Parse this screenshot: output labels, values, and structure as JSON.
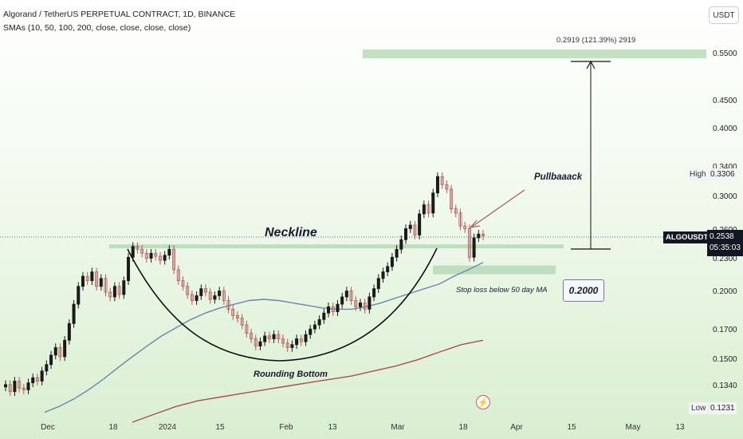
{
  "header": {
    "title": "Algorand / TetherUS PERPETUAL CONTRACT, 1D, BINANCE",
    "indicator": "SMAs (10, 50, 100, 200, close, close, close, close)"
  },
  "currency_button": "USDT",
  "symbol": "ALGOUSDT.P",
  "last_price": "0.2538",
  "countdown": "05:35:03",
  "high": {
    "label": "High",
    "value": "0.3306"
  },
  "low": {
    "label": "Low",
    "value": "0.1231"
  },
  "annotations": {
    "neckline": "Neckline",
    "rounding_bottom": "Rounding Bottom",
    "pullback": "Pullbaaack",
    "stop_loss": "Stop loss below 50 day MA",
    "measure": "0.2919 (121.39%) 2919",
    "target_box": "0.2000"
  },
  "colors": {
    "up_candle": "#1a1a1a",
    "down_candle": "#b25a5a",
    "sma50": "#6b87ac",
    "sma200": "#a85050",
    "zone": "#b9dbb9",
    "background_bottom": "#d9eed0"
  },
  "icons": {
    "alert": "lightning-icon"
  },
  "chart_data": {
    "type": "candlestick",
    "y_scale": "log",
    "y_tick_labels": [
      "0.5500",
      "0.4500",
      "0.4000",
      "0.3400",
      "0.3000",
      "0.2600",
      "0.2300",
      "0.2000",
      "0.1700",
      "0.1500",
      "0.1340"
    ],
    "x_tick_labels": [
      "Dec",
      "18",
      "2024",
      "15",
      "Feb",
      "13",
      "Mar",
      "18",
      "Apr",
      "15",
      "May",
      "13"
    ],
    "candles_close": [
      0.135,
      0.131,
      0.137,
      0.133,
      0.132,
      0.136,
      0.139,
      0.137,
      0.143,
      0.147,
      0.153,
      0.158,
      0.152,
      0.163,
      0.175,
      0.19,
      0.205,
      0.214,
      0.21,
      0.218,
      0.205,
      0.212,
      0.2,
      0.196,
      0.205,
      0.198,
      0.21,
      0.232,
      0.243,
      0.24,
      0.236,
      0.231,
      0.236,
      0.233,
      0.229,
      0.234,
      0.24,
      0.22,
      0.21,
      0.205,
      0.198,
      0.193,
      0.197,
      0.203,
      0.2,
      0.194,
      0.197,
      0.201,
      0.193,
      0.186,
      0.181,
      0.179,
      0.174,
      0.168,
      0.164,
      0.159,
      0.162,
      0.166,
      0.164,
      0.167,
      0.164,
      0.161,
      0.158,
      0.16,
      0.164,
      0.162,
      0.167,
      0.171,
      0.174,
      0.178,
      0.183,
      0.188,
      0.184,
      0.19,
      0.196,
      0.201,
      0.193,
      0.188,
      0.191,
      0.186,
      0.196,
      0.203,
      0.212,
      0.218,
      0.223,
      0.232,
      0.24,
      0.25,
      0.262,
      0.266,
      0.255,
      0.279,
      0.29,
      0.28,
      0.305,
      0.327,
      0.316,
      0.31,
      0.285,
      0.28,
      0.265,
      0.262,
      0.232,
      0.252,
      0.256,
      0.254
    ],
    "sma50": [
      0.12,
      0.123,
      0.127,
      0.132,
      0.138,
      0.145,
      0.152,
      0.159,
      0.166,
      0.172,
      0.178,
      0.183,
      0.187,
      0.19,
      0.193,
      0.194,
      0.193,
      0.191,
      0.189,
      0.187,
      0.186,
      0.186,
      0.188,
      0.191,
      0.195,
      0.199,
      0.203,
      0.207,
      0.214,
      0.22,
      0.227
    ],
    "sma200": [
      0.115,
      0.119,
      0.123,
      0.126,
      0.128,
      0.13,
      0.132,
      0.134,
      0.136,
      0.138,
      0.14,
      0.143,
      0.146,
      0.15,
      0.155,
      0.16,
      0.163
    ],
    "neckline": 0.243,
    "target": 0.55,
    "stop_zone": [
      0.218,
      0.224
    ]
  }
}
